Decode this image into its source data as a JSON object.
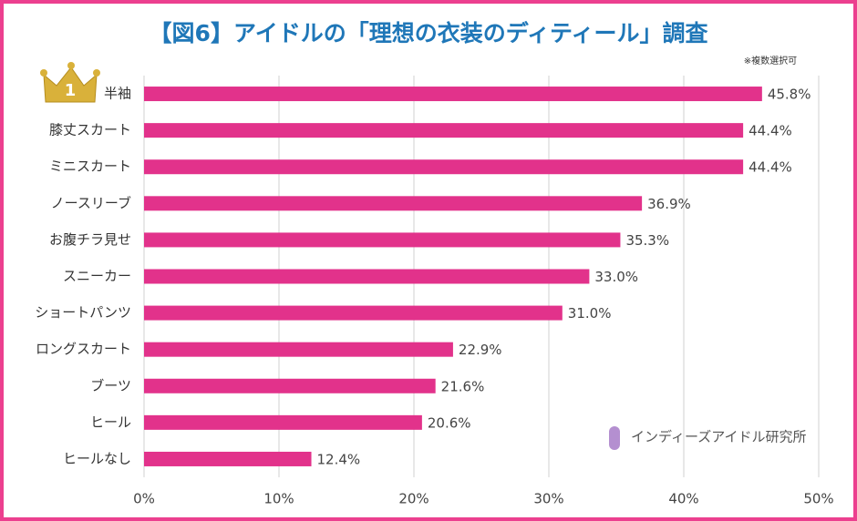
{
  "chart_data": {
    "type": "bar",
    "orientation": "horizontal",
    "title": "【図6】アイドルの「理想の衣装のディティール」調査",
    "subtitle": "※複数選択可",
    "badge": "1",
    "source": "インディーズアイドル研究所",
    "categories": [
      "半袖",
      "膝丈スカート",
      "ミニスカート",
      "ノースリーブ",
      "お腹チラ見せ",
      "スニーカー",
      "ショートパンツ",
      "ロングスカート",
      "ブーツ",
      "ヒール",
      "ヒールなし"
    ],
    "values": [
      45.8,
      44.4,
      44.4,
      36.9,
      35.3,
      33.0,
      31.0,
      22.9,
      21.6,
      20.6,
      12.4
    ],
    "value_labels": [
      "45.8%",
      "44.4%",
      "44.4%",
      "36.9%",
      "35.3%",
      "33.0%",
      "31.0%",
      "22.9%",
      "21.6%",
      "20.6%",
      "12.4%"
    ],
    "color": "#e2328b",
    "xlim": [
      0,
      50
    ],
    "xticks": [
      {
        "value": 0,
        "label": "0%"
      },
      {
        "value": 10,
        "label": "10%"
      },
      {
        "value": 20,
        "label": "20%"
      },
      {
        "value": 30,
        "label": "30%"
      },
      {
        "value": 40,
        "label": "40%"
      },
      {
        "value": 50,
        "label": "50%"
      }
    ],
    "grid": true
  }
}
